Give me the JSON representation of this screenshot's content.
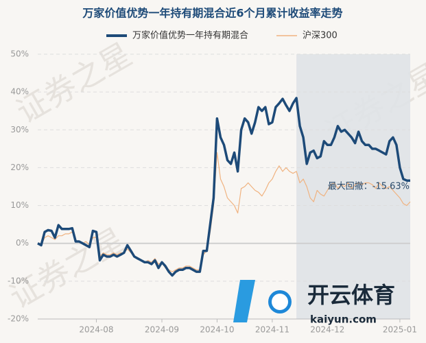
{
  "chart_data": {
    "type": "line",
    "title": "万家价值优势一年持有期混合近6个月累计收益率走势",
    "watermark": "证券之星",
    "logo": {
      "name": "开云体育",
      "site": "kaiyun.com"
    },
    "annotation": "最大回撤：-15.63%",
    "grid": true,
    "ylim": [
      -20,
      50
    ],
    "yticks": [
      {
        "value": -20,
        "label": "-20%"
      },
      {
        "value": -10,
        "label": "-10%"
      },
      {
        "value": 0,
        "label": "0%"
      },
      {
        "value": 10,
        "label": "10%"
      },
      {
        "value": 20,
        "label": "20%"
      },
      {
        "value": 30,
        "label": "30%"
      },
      {
        "value": 40,
        "label": "40%"
      },
      {
        "value": 50,
        "label": "50%"
      }
    ],
    "categories": [
      null,
      null,
      null,
      null,
      null,
      null,
      null,
      null,
      null,
      null,
      null,
      null,
      null,
      null,
      null,
      null,
      null,
      "2024-08",
      null,
      null,
      null,
      null,
      null,
      null,
      null,
      null,
      null,
      null,
      null,
      null,
      null,
      null,
      null,
      null,
      null,
      null,
      "2024-09",
      null,
      null,
      null,
      null,
      null,
      null,
      null,
      null,
      null,
      null,
      null,
      null,
      null,
      null,
      null,
      "2024-10",
      null,
      null,
      null,
      null,
      null,
      null,
      null,
      null,
      null,
      null,
      null,
      null,
      null,
      null,
      null,
      "2024-11",
      null,
      null,
      null,
      null,
      null,
      null,
      null,
      null,
      null,
      null,
      null,
      null,
      null,
      null,
      null,
      "2024-12",
      null,
      null,
      null,
      null,
      null,
      null,
      null,
      null,
      null,
      null,
      null,
      null,
      null,
      null,
      null,
      null,
      null,
      null,
      null,
      null,
      "2025-01",
      null,
      null,
      null
    ],
    "series": [
      {
        "name": "万家价值优势一年持有期混合",
        "color": "#1d4a78",
        "values": [
          0,
          -0.5,
          3,
          3.5,
          3.3,
          1.5,
          4.8,
          3.8,
          3.8,
          3.8,
          4,
          0.5,
          0.5,
          0,
          -0.5,
          -1,
          3.3,
          3,
          -4.5,
          -3,
          -3.5,
          -3.5,
          -3,
          -3.5,
          -3,
          -2.5,
          -0.5,
          -2,
          -3.5,
          -4,
          -4.5,
          -5,
          -5,
          -5.5,
          -4.5,
          -6.5,
          -5,
          -6,
          -7.5,
          -8.5,
          -7.5,
          -7,
          -7,
          -6.5,
          -6.5,
          -7,
          -7.5,
          -7.5,
          -2,
          -2,
          5,
          12,
          33,
          28,
          26,
          22,
          21,
          24,
          19,
          30,
          33,
          32,
          29,
          32,
          36,
          35,
          36,
          31.5,
          32,
          36,
          37,
          38.2,
          36.5,
          35,
          37,
          38.4,
          31,
          28,
          21,
          24,
          24.5,
          22.5,
          23,
          27,
          26,
          26,
          28,
          31,
          29.5,
          30,
          29,
          28,
          26.5,
          29.5,
          27,
          26,
          26,
          25,
          25,
          24.5,
          24,
          23.5,
          27,
          28,
          26,
          20,
          17,
          16.6,
          16.6
        ]
      },
      {
        "name": "沪深300",
        "color": "#f0b27f",
        "values": [
          0,
          -0.5,
          1.5,
          2,
          1.5,
          1,
          2,
          2,
          2.5,
          2.5,
          3,
          0.8,
          0.5,
          0,
          0.5,
          -0.5,
          1.5,
          1.5,
          -3.5,
          -2.5,
          -3,
          -3,
          -2.5,
          -3,
          -2.5,
          -2.5,
          -1.5,
          -2.5,
          -3.5,
          -4,
          -4.5,
          -5,
          -4.5,
          -5,
          -4,
          -5.5,
          -5,
          -6.5,
          -7,
          -7.5,
          -7,
          -6.5,
          -6.5,
          -6,
          -6,
          -6.5,
          -7,
          -7,
          -3,
          -2,
          3,
          10,
          24,
          17,
          15,
          12,
          11,
          10,
          8,
          14.5,
          15,
          16,
          15,
          14,
          13.5,
          12.5,
          14,
          16,
          17,
          19,
          20.5,
          19,
          20,
          19,
          18.5,
          19,
          16,
          17,
          15,
          12,
          11,
          14,
          13,
          12.5,
          14,
          15.5,
          16,
          14.5,
          15.5,
          15,
          16,
          14.5,
          15.5,
          16,
          15.5,
          16,
          16,
          15.5,
          14.5,
          16,
          15,
          14.5,
          15,
          14,
          13,
          12,
          10.5,
          10,
          11
        ]
      }
    ]
  }
}
